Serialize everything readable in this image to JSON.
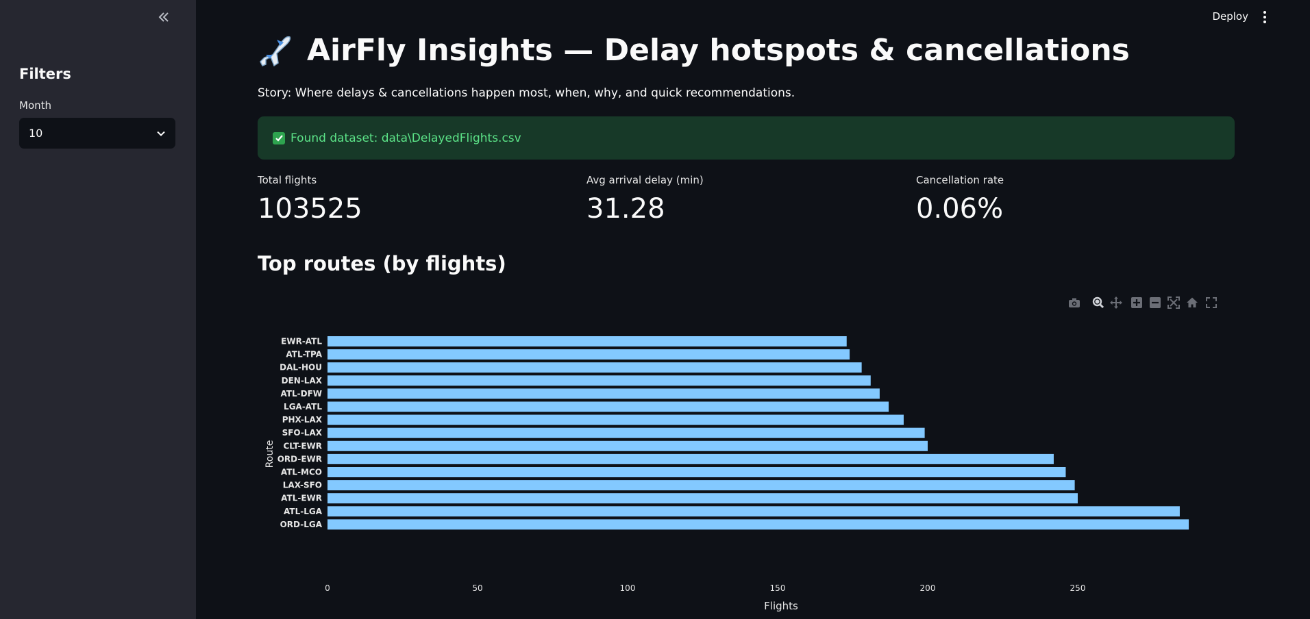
{
  "sidebar": {
    "title": "Filters",
    "month_label": "Month",
    "month_value": "10"
  },
  "header": {
    "deploy_label": "Deploy"
  },
  "main": {
    "title": "AirFly Insights — Delay hotspots & cancellations",
    "title_icon": "airplane-emoji",
    "story": "Story: Where delays & cancellations happen most, when, why, and quick recommendations.",
    "alert": "Found dataset: data\\DelayedFlights.csv",
    "metrics": [
      {
        "label": "Total flights",
        "value": "103525"
      },
      {
        "label": "Avg arrival delay (min)",
        "value": "31.28"
      },
      {
        "label": "Cancellation rate",
        "value": "0.06%"
      }
    ],
    "section_title": "Top routes (by flights)"
  },
  "modebar_icons": [
    "camera-icon",
    "zoom-icon",
    "pan-icon",
    "zoom-in-icon",
    "zoom-out-icon",
    "autoscale-icon",
    "home-icon",
    "fullscreen-icon"
  ],
  "colors": {
    "bar": "#83c9ff",
    "alert_bg": "#173928",
    "alert_text": "#5ce488",
    "sidebar_bg": "#262730",
    "page_bg": "#0e1117"
  },
  "chart_data": {
    "type": "bar",
    "orientation": "horizontal",
    "categories": [
      "EWR-ATL",
      "ATL-TPA",
      "DAL-HOU",
      "DEN-LAX",
      "ATL-DFW",
      "LGA-ATL",
      "PHX-LAX",
      "SFO-LAX",
      "CLT-EWR",
      "ORD-EWR",
      "ATL-MCO",
      "LAX-SFO",
      "ATL-EWR",
      "ATL-LGA",
      "ORD-LGA"
    ],
    "values": [
      173,
      174,
      178,
      181,
      184,
      187,
      192,
      199,
      200,
      242,
      246,
      249,
      250,
      284,
      287
    ],
    "xlabel": "Flights",
    "ylabel": "Route",
    "xticks": [
      0,
      50,
      100,
      150,
      200,
      250
    ],
    "xlim": [
      0,
      302
    ]
  }
}
